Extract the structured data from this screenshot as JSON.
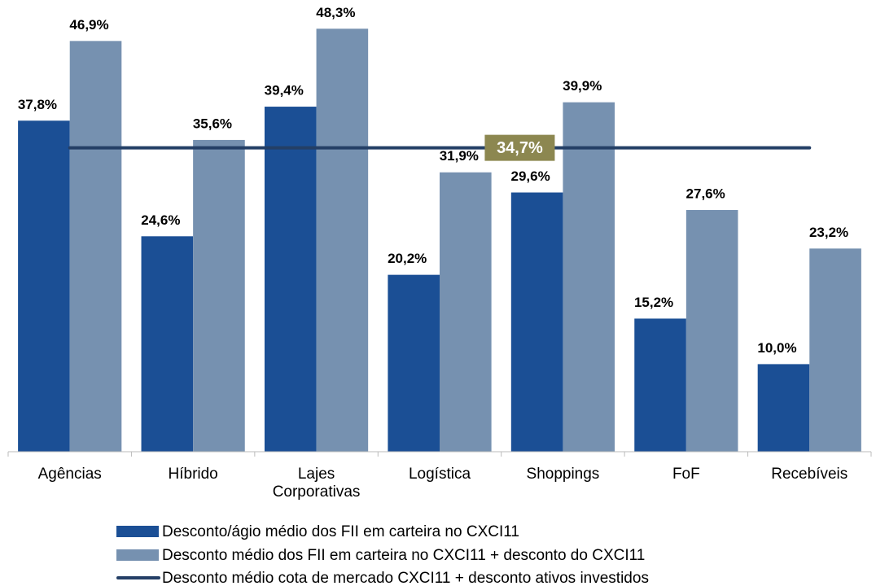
{
  "chart_data": {
    "type": "bar",
    "categories": [
      "Agências",
      "Híbrido",
      "Lajes Corporativas",
      "Logística",
      "Shoppings",
      "FoF",
      "Recebíveis"
    ],
    "series": [
      {
        "name": "Desconto/ágio médio dos FII em carteira no CXCI11",
        "color": "#1b4f95",
        "values": [
          37.8,
          24.6,
          39.4,
          20.2,
          29.6,
          15.2,
          10.0
        ],
        "value_labels": [
          "37,8%",
          "24,6%",
          "39,4%",
          "20,2%",
          "29,6%",
          "15,2%",
          "10,0%"
        ]
      },
      {
        "name": "Desconto médio dos FII em carteira no CXCI11 + desconto do CXCI11",
        "color": "#7691b0",
        "values": [
          46.9,
          35.6,
          48.3,
          31.9,
          39.9,
          27.6,
          23.2
        ],
        "value_labels": [
          "46,9%",
          "35,6%",
          "48,3%",
          "31,9%",
          "39,9%",
          "27,6%",
          "23,2%"
        ]
      }
    ],
    "reference_line": {
      "name": "Desconto médio cota de mercado CXCI11 + desconto ativos investidos",
      "color": "#243f66",
      "value": 34.7,
      "value_label": "34,7%",
      "label_color": "#8c8750"
    },
    "ylim": [
      0,
      50
    ]
  }
}
